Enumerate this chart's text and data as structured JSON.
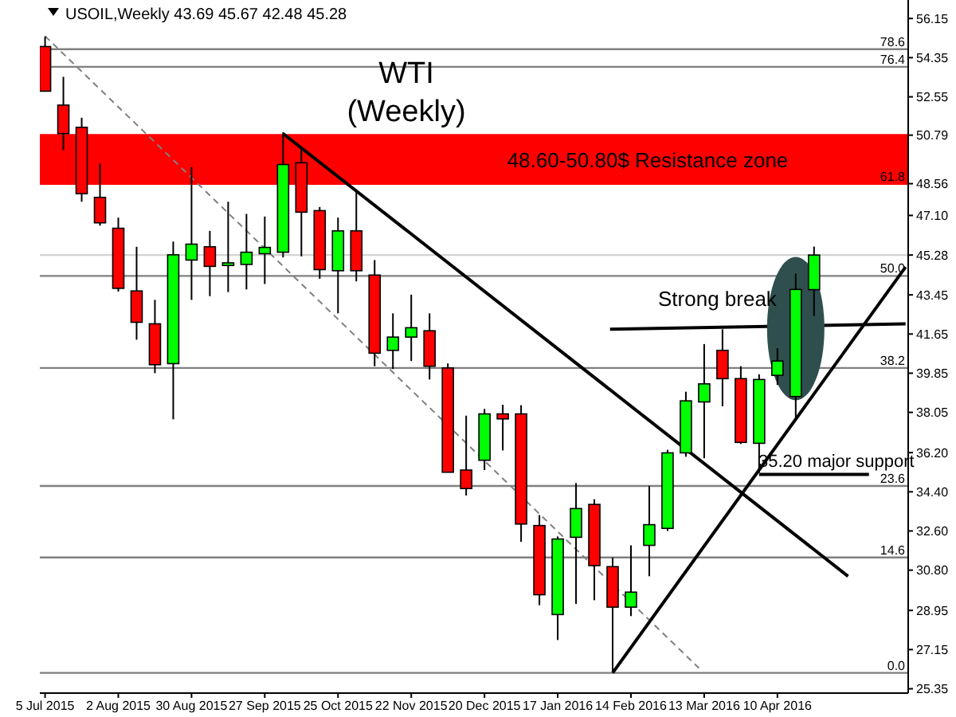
{
  "chart_data": {
    "type": "candlestick",
    "title": "USOIL,Weekly  43.69 45.67 42.48 45.28",
    "annotations": [
      "WTI",
      "(Weekly)",
      "Strong break",
      "35.20 major support",
      {
        "text": "78.6",
        "x": "2016-05-30",
        "y": 54.74
      },
      {
        "text": "76.4",
        "x": "2016-05-30",
        "y": 53.93
      },
      {
        "text": "61.8",
        "x": "2016-05-30",
        "y": 48.56
      },
      {
        "text": "50.0",
        "x": "2016-05-30",
        "y": 44.32
      },
      {
        "text": "38.2",
        "x": "2016-05-30",
        "y": 40.09
      },
      {
        "text": "23.6",
        "x": "2016-05-30",
        "y": 34.67
      },
      {
        "text": "14.6",
        "x": "2016-05-30",
        "y": 31.38
      },
      {
        "text": "0.0",
        "x": "2016-05-30",
        "y": 26.08
      }
    ],
    "x": [
      "2015-07-05",
      "2015-07-12",
      "2015-07-19",
      "2015-07-26",
      "2015-08-02",
      "2015-08-09",
      "2015-08-16",
      "2015-08-23",
      "2015-08-30",
      "2015-09-06",
      "2015-09-13",
      "2015-09-20",
      "2015-09-27",
      "2015-10-04",
      "2015-10-11",
      "2015-10-18",
      "2015-10-25",
      "2015-11-01",
      "2015-11-08",
      "2015-11-15",
      "2015-11-22",
      "2015-11-29",
      "2015-12-06",
      "2015-12-13",
      "2015-12-20",
      "2015-12-27",
      "2016-01-03",
      "2016-01-10",
      "2016-01-17",
      "2016-01-24",
      "2016-01-31",
      "2016-02-07",
      "2016-02-14",
      "2016-02-21",
      "2016-02-28",
      "2016-03-06",
      "2016-03-13",
      "2016-03-20",
      "2016-03-27",
      "2016-04-03",
      "2016-04-10",
      "2016-04-17",
      "2016-04-24"
    ],
    "ohlc": [
      [
        54.86,
        55.32,
        52.8,
        52.81
      ],
      [
        52.17,
        53.47,
        50.1,
        50.86
      ],
      [
        51.15,
        51.59,
        47.73,
        48.1
      ],
      [
        47.93,
        49.49,
        46.63,
        46.76
      ],
      [
        46.51,
        47.0,
        43.6,
        43.75
      ],
      [
        43.63,
        45.66,
        41.39,
        42.19
      ],
      [
        42.12,
        43.22,
        39.85,
        40.24
      ],
      [
        40.29,
        45.9,
        37.73,
        45.29
      ],
      [
        45.05,
        49.32,
        43.22,
        45.78
      ],
      [
        45.66,
        46.39,
        43.39,
        44.76
      ],
      [
        44.8,
        47.73,
        43.58,
        44.92
      ],
      [
        44.85,
        47.17,
        43.7,
        45.41
      ],
      [
        45.34,
        47.05,
        43.95,
        45.63
      ],
      [
        45.41,
        50.92,
        45.17,
        49.44
      ],
      [
        49.52,
        50.17,
        45.22,
        47.25
      ],
      [
        47.32,
        47.49,
        44.19,
        44.61
      ],
      [
        44.56,
        47.0,
        42.6,
        46.39
      ],
      [
        46.39,
        48.22,
        44.07,
        44.56
      ],
      [
        44.36,
        45.05,
        40.17,
        40.77
      ],
      [
        40.9,
        42.6,
        40.04,
        41.51
      ],
      [
        41.51,
        43.46,
        40.41,
        41.94
      ],
      [
        41.8,
        42.6,
        39.56,
        40.17
      ],
      [
        40.09,
        40.3,
        35.3,
        35.3
      ],
      [
        35.4,
        37.9,
        34.23,
        34.55
      ],
      [
        35.85,
        38.21,
        35.4,
        37.98
      ],
      [
        37.98,
        38.4,
        36.3,
        37.75
      ],
      [
        37.98,
        38.38,
        32.1,
        32.92
      ],
      [
        32.85,
        33.33,
        29.19,
        29.67
      ],
      [
        28.76,
        32.35,
        27.59,
        32.23
      ],
      [
        32.31,
        34.8,
        29.25,
        33.63
      ],
      [
        33.82,
        34.06,
        29.42,
        31.01
      ],
      [
        30.96,
        31.38,
        26.1,
        29.1
      ],
      [
        29.1,
        31.94,
        28.69,
        29.79
      ],
      [
        31.94,
        34.67,
        30.52,
        32.89
      ],
      [
        32.72,
        36.33,
        32.6,
        36.19
      ],
      [
        36.19,
        39.0,
        36.01,
        38.58
      ],
      [
        38.53,
        41.19,
        35.94,
        39.36
      ],
      [
        40.9,
        41.87,
        38.33,
        39.6
      ],
      [
        39.6,
        40.17,
        36.6,
        36.67
      ],
      [
        36.63,
        39.8,
        35.28,
        39.56
      ],
      [
        39.75,
        41.0,
        39.31,
        40.41
      ],
      [
        38.78,
        44.43,
        37.73,
        43.7
      ],
      [
        43.69,
        45.67,
        42.48,
        45.28
      ]
    ],
    "colors": [
      "#ff0000",
      "#ff0000",
      "#ff0000",
      "#ff0000",
      "#ff0000",
      "#ff0000",
      "#ff0000",
      "#00ff00",
      "#00ff00",
      "#ff0000",
      "#00ff00",
      "#00ff00",
      "#00ff00",
      "#00ff00",
      "#ff0000",
      "#ff0000",
      "#00ff00",
      "#ff0000",
      "#ff0000",
      "#00ff00",
      "#00ff00",
      "#ff0000",
      "#ff0000",
      "#ff0000",
      "#00ff00",
      "#ff0000",
      "#ff0000",
      "#ff0000",
      "#00ff00",
      "#00ff00",
      "#ff0000",
      "#ff0000",
      "#00ff00",
      "#00ff00",
      "#00ff00",
      "#00ff00",
      "#00ff00",
      "#ff0000",
      "#ff0000",
      "#00ff00",
      "#00ff00",
      "#00ff00",
      "#00ff00"
    ],
    "series": [
      {
        "type": "line",
        "color": "#808080",
        "line_style": "dashed",
        "x": [
          "2015-07-05",
          "2016-03-11"
        ],
        "values": [
          55.34,
          26.3
        ]
      },
      {
        "type": "line",
        "color": "#000000",
        "line_style": "solid",
        "x": [
          "2015-10-04",
          "2016-05-07"
        ],
        "values": [
          50.86,
          30.52
        ]
      },
      {
        "type": "line",
        "color": "#000000",
        "line_style": "solid",
        "x": [
          "2016-02-07",
          "2016-05-29"
        ],
        "values": [
          26.08,
          44.73
        ]
      },
      {
        "type": "line",
        "color": "#000000",
        "line_style": "solid",
        "x": [
          "2016-02-06",
          "2016-05-29"
        ],
        "values": [
          41.87,
          42.12
        ]
      },
      {
        "type": "line",
        "color": "#000000",
        "line_style": "solid",
        "x": [
          "2016-04-03",
          "2016-05-15"
        ],
        "values": [
          35.2,
          35.2
        ]
      }
    ],
    "bands": [
      {
        "axis": "y",
        "from": 48.56,
        "to": 50.79,
        "label": "48.60-50.80$ Resistance zone",
        "color": "#ff0000"
      }
    ],
    "ref_lines": [
      {
        "axis": "y",
        "value": 54.74,
        "color": "#808080"
      },
      {
        "axis": "y",
        "value": 53.93,
        "color": "#808080"
      },
      {
        "axis": "y",
        "value": 50.79,
        "color": "#ff0000"
      },
      {
        "axis": "y",
        "value": 48.56,
        "color": "#ff0000"
      },
      {
        "axis": "y",
        "value": 45.28,
        "color": "#d3d3d3"
      },
      {
        "axis": "y",
        "value": 44.32,
        "color": "#808080"
      },
      {
        "axis": "y",
        "value": 40.09,
        "color": "#808080"
      },
      {
        "axis": "y",
        "value": 34.67,
        "color": "#808080"
      },
      {
        "axis": "y",
        "value": 31.38,
        "color": "#808080"
      },
      {
        "axis": "y",
        "value": 26.08,
        "color": "#808080"
      }
    ],
    "xlim": [
      "2015-07-03",
      "2016-05-30"
    ],
    "xticks": [
      {
        "value": "2015-07-05",
        "label": "5 Jul 2015"
      },
      {
        "value": "2015-08-02",
        "label": "2 Aug 2015"
      },
      {
        "value": "2015-08-30",
        "label": "30 Aug 2015"
      },
      {
        "value": "2015-09-27",
        "label": "27 Sep 2015"
      },
      {
        "value": "2015-10-25",
        "label": "25 Oct 2015"
      },
      {
        "value": "2015-11-22",
        "label": "22 Nov 2015"
      },
      {
        "value": "2015-12-20",
        "label": "20 Dec 2015"
      },
      {
        "value": "2016-01-17",
        "label": "17 Jan 2016"
      },
      {
        "value": "2016-02-14",
        "label": "14 Feb 2016"
      },
      {
        "value": "2016-03-13",
        "label": "13 Mar 2016"
      },
      {
        "value": "2016-04-10",
        "label": "10 Apr 2016"
      }
    ],
    "ylim": [
      25.15,
      57.0
    ],
    "yticks": [
      56.15,
      54.35,
      52.55,
      50.79,
      48.56,
      {
        "value": 47.1,
        "label": "47.10"
      },
      45.28,
      43.45,
      41.65,
      39.85,
      38.05,
      {
        "value": 36.2,
        "label": "36.20"
      },
      {
        "value": 34.4,
        "label": "34.40"
      },
      {
        "value": 32.6,
        "label": "32.60"
      },
      {
        "value": 30.8,
        "label": "30.80"
      },
      28.95,
      27.15,
      25.35
    ]
  }
}
